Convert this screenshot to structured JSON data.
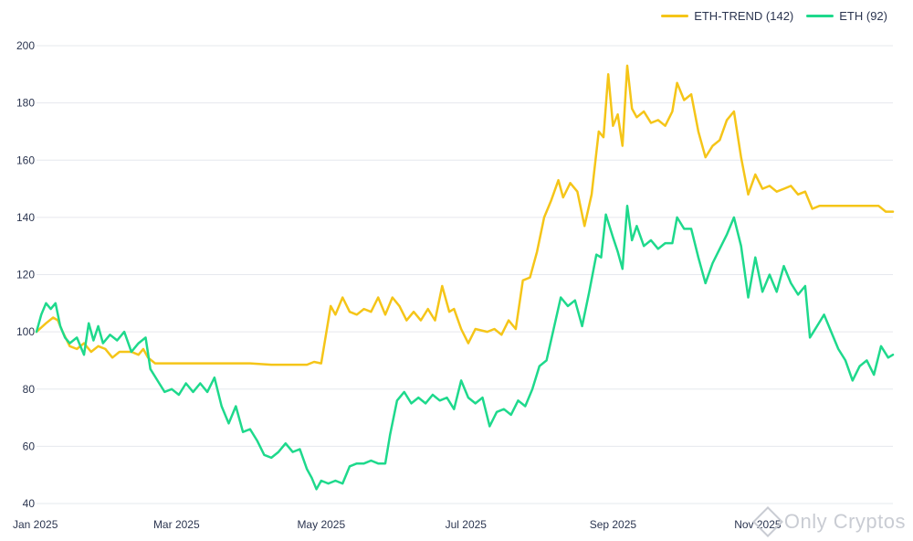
{
  "legend": {
    "trend_label": "ETH-TREND (142)",
    "eth_label": "ETH (92)"
  },
  "watermark": {
    "text": "Only Cryptos"
  },
  "colors": {
    "trend": "#f5c518",
    "eth": "#1ed98c",
    "grid": "#e6e8ee",
    "text": "#2b3550"
  },
  "chart_data": {
    "type": "line",
    "x_ticks": [
      "Jan 2025",
      "Mar 2025",
      "May 2025",
      "Jul 2025",
      "Sep 2025",
      "Nov 2025"
    ],
    "x_tick_dates": [
      "2025-01-01",
      "2025-03-01",
      "2025-05-01",
      "2025-07-01",
      "2025-09-01",
      "2025-11-01"
    ],
    "y_ticks": [
      40,
      60,
      80,
      100,
      120,
      140,
      160,
      180,
      200
    ],
    "ylim": [
      40,
      200
    ],
    "xlim": [
      "2025-01-01",
      "2025-12-28"
    ],
    "grid": true,
    "legend_position": "top-right",
    "series": [
      {
        "name": "ETH-TREND (142)",
        "color_key": "trend",
        "points": [
          [
            "2025-01-01",
            100
          ],
          [
            "2025-01-05",
            103
          ],
          [
            "2025-01-08",
            105
          ],
          [
            "2025-01-10",
            104
          ],
          [
            "2025-01-12",
            100
          ],
          [
            "2025-01-15",
            95
          ],
          [
            "2025-01-18",
            94
          ],
          [
            "2025-01-21",
            96
          ],
          [
            "2025-01-24",
            93
          ],
          [
            "2025-01-27",
            95
          ],
          [
            "2025-01-30",
            94
          ],
          [
            "2025-02-02",
            91
          ],
          [
            "2025-02-05",
            93
          ],
          [
            "2025-02-10",
            93
          ],
          [
            "2025-02-13",
            92
          ],
          [
            "2025-02-15",
            94
          ],
          [
            "2025-02-17",
            91
          ],
          [
            "2025-02-20",
            89
          ],
          [
            "2025-03-01",
            89
          ],
          [
            "2025-04-01",
            89
          ],
          [
            "2025-04-10",
            88.5
          ],
          [
            "2025-04-25",
            88.5
          ],
          [
            "2025-04-28",
            89.5
          ],
          [
            "2025-05-01",
            89
          ],
          [
            "2025-05-03",
            99
          ],
          [
            "2025-05-05",
            109
          ],
          [
            "2025-05-07",
            106
          ],
          [
            "2025-05-10",
            112
          ],
          [
            "2025-05-13",
            107
          ],
          [
            "2025-05-16",
            106
          ],
          [
            "2025-05-19",
            108
          ],
          [
            "2025-05-22",
            107
          ],
          [
            "2025-05-25",
            112
          ],
          [
            "2025-05-28",
            106
          ],
          [
            "2025-05-31",
            112
          ],
          [
            "2025-06-03",
            109
          ],
          [
            "2025-06-06",
            104
          ],
          [
            "2025-06-09",
            107
          ],
          [
            "2025-06-12",
            104
          ],
          [
            "2025-06-15",
            108
          ],
          [
            "2025-06-18",
            104
          ],
          [
            "2025-06-21",
            116
          ],
          [
            "2025-06-24",
            107
          ],
          [
            "2025-06-26",
            108
          ],
          [
            "2025-06-29",
            101
          ],
          [
            "2025-07-02",
            96
          ],
          [
            "2025-07-05",
            101
          ],
          [
            "2025-07-10",
            100
          ],
          [
            "2025-07-13",
            101
          ],
          [
            "2025-07-16",
            99
          ],
          [
            "2025-07-19",
            104
          ],
          [
            "2025-07-22",
            101
          ],
          [
            "2025-07-25",
            118
          ],
          [
            "2025-07-28",
            119
          ],
          [
            "2025-07-31",
            128
          ],
          [
            "2025-08-03",
            140
          ],
          [
            "2025-08-06",
            146
          ],
          [
            "2025-08-09",
            153
          ],
          [
            "2025-08-11",
            147
          ],
          [
            "2025-08-14",
            152
          ],
          [
            "2025-08-17",
            149
          ],
          [
            "2025-08-20",
            137
          ],
          [
            "2025-08-23",
            148
          ],
          [
            "2025-08-26",
            170
          ],
          [
            "2025-08-28",
            168
          ],
          [
            "2025-08-30",
            190
          ],
          [
            "2025-09-01",
            172
          ],
          [
            "2025-09-03",
            176
          ],
          [
            "2025-09-05",
            165
          ],
          [
            "2025-09-07",
            193
          ],
          [
            "2025-09-09",
            178
          ],
          [
            "2025-09-11",
            175
          ],
          [
            "2025-09-14",
            177
          ],
          [
            "2025-09-17",
            173
          ],
          [
            "2025-09-20",
            174
          ],
          [
            "2025-09-23",
            172
          ],
          [
            "2025-09-26",
            177
          ],
          [
            "2025-09-28",
            187
          ],
          [
            "2025-10-01",
            181
          ],
          [
            "2025-10-04",
            183
          ],
          [
            "2025-10-07",
            170
          ],
          [
            "2025-10-10",
            161
          ],
          [
            "2025-10-13",
            165
          ],
          [
            "2025-10-16",
            167
          ],
          [
            "2025-10-19",
            174
          ],
          [
            "2025-10-22",
            177
          ],
          [
            "2025-10-25",
            161
          ],
          [
            "2025-10-28",
            148
          ],
          [
            "2025-10-31",
            155
          ],
          [
            "2025-11-03",
            150
          ],
          [
            "2025-11-06",
            151
          ],
          [
            "2025-11-09",
            149
          ],
          [
            "2025-11-12",
            150
          ],
          [
            "2025-11-15",
            151
          ],
          [
            "2025-11-18",
            148
          ],
          [
            "2025-11-21",
            149
          ],
          [
            "2025-11-24",
            143
          ],
          [
            "2025-11-27",
            144
          ],
          [
            "2025-12-05",
            144
          ],
          [
            "2025-12-15",
            144
          ],
          [
            "2025-12-22",
            144
          ],
          [
            "2025-12-25",
            142
          ],
          [
            "2025-12-28",
            142
          ]
        ]
      },
      {
        "name": "ETH (92)",
        "color_key": "eth",
        "points": [
          [
            "2025-01-01",
            100
          ],
          [
            "2025-01-03",
            106
          ],
          [
            "2025-01-05",
            110
          ],
          [
            "2025-01-07",
            108
          ],
          [
            "2025-01-09",
            110
          ],
          [
            "2025-01-11",
            102
          ],
          [
            "2025-01-13",
            98
          ],
          [
            "2025-01-15",
            96
          ],
          [
            "2025-01-18",
            98
          ],
          [
            "2025-01-21",
            92
          ],
          [
            "2025-01-23",
            103
          ],
          [
            "2025-01-25",
            97
          ],
          [
            "2025-01-27",
            102
          ],
          [
            "2025-01-29",
            96
          ],
          [
            "2025-02-01",
            99
          ],
          [
            "2025-02-04",
            97
          ],
          [
            "2025-02-07",
            100
          ],
          [
            "2025-02-10",
            93
          ],
          [
            "2025-02-13",
            96
          ],
          [
            "2025-02-16",
            98
          ],
          [
            "2025-02-18",
            87
          ],
          [
            "2025-02-21",
            83
          ],
          [
            "2025-02-24",
            79
          ],
          [
            "2025-02-27",
            80
          ],
          [
            "2025-03-02",
            78
          ],
          [
            "2025-03-05",
            82
          ],
          [
            "2025-03-08",
            79
          ],
          [
            "2025-03-11",
            82
          ],
          [
            "2025-03-14",
            79
          ],
          [
            "2025-03-17",
            84
          ],
          [
            "2025-03-20",
            74
          ],
          [
            "2025-03-23",
            68
          ],
          [
            "2025-03-26",
            74
          ],
          [
            "2025-03-29",
            65
          ],
          [
            "2025-04-01",
            66
          ],
          [
            "2025-04-04",
            62
          ],
          [
            "2025-04-07",
            57
          ],
          [
            "2025-04-10",
            56
          ],
          [
            "2025-04-13",
            58
          ],
          [
            "2025-04-16",
            61
          ],
          [
            "2025-04-19",
            58
          ],
          [
            "2025-04-22",
            59
          ],
          [
            "2025-04-25",
            52
          ],
          [
            "2025-04-27",
            49
          ],
          [
            "2025-04-29",
            45
          ],
          [
            "2025-05-01",
            48
          ],
          [
            "2025-05-04",
            47
          ],
          [
            "2025-05-07",
            48
          ],
          [
            "2025-05-10",
            47
          ],
          [
            "2025-05-13",
            53
          ],
          [
            "2025-05-16",
            54
          ],
          [
            "2025-05-19",
            54
          ],
          [
            "2025-05-22",
            55
          ],
          [
            "2025-05-25",
            54
          ],
          [
            "2025-05-28",
            54
          ],
          [
            "2025-05-30",
            64
          ],
          [
            "2025-06-02",
            76
          ],
          [
            "2025-06-05",
            79
          ],
          [
            "2025-06-08",
            75
          ],
          [
            "2025-06-11",
            77
          ],
          [
            "2025-06-14",
            75
          ],
          [
            "2025-06-17",
            78
          ],
          [
            "2025-06-20",
            76
          ],
          [
            "2025-06-23",
            77
          ],
          [
            "2025-06-26",
            73
          ],
          [
            "2025-06-29",
            83
          ],
          [
            "2025-07-02",
            77
          ],
          [
            "2025-07-05",
            75
          ],
          [
            "2025-07-08",
            77
          ],
          [
            "2025-07-11",
            67
          ],
          [
            "2025-07-14",
            72
          ],
          [
            "2025-07-17",
            73
          ],
          [
            "2025-07-20",
            71
          ],
          [
            "2025-07-23",
            76
          ],
          [
            "2025-07-26",
            74
          ],
          [
            "2025-07-29",
            80
          ],
          [
            "2025-08-01",
            88
          ],
          [
            "2025-08-04",
            90
          ],
          [
            "2025-08-07",
            101
          ],
          [
            "2025-08-10",
            112
          ],
          [
            "2025-08-13",
            109
          ],
          [
            "2025-08-16",
            111
          ],
          [
            "2025-08-19",
            102
          ],
          [
            "2025-08-22",
            114
          ],
          [
            "2025-08-25",
            127
          ],
          [
            "2025-08-27",
            126
          ],
          [
            "2025-08-29",
            141
          ],
          [
            "2025-09-01",
            133
          ],
          [
            "2025-09-03",
            128
          ],
          [
            "2025-09-05",
            122
          ],
          [
            "2025-09-07",
            144
          ],
          [
            "2025-09-09",
            132
          ],
          [
            "2025-09-11",
            137
          ],
          [
            "2025-09-14",
            130
          ],
          [
            "2025-09-17",
            132
          ],
          [
            "2025-09-20",
            129
          ],
          [
            "2025-09-23",
            131
          ],
          [
            "2025-09-26",
            131
          ],
          [
            "2025-09-28",
            140
          ],
          [
            "2025-10-01",
            136
          ],
          [
            "2025-10-04",
            136
          ],
          [
            "2025-10-07",
            126
          ],
          [
            "2025-10-10",
            117
          ],
          [
            "2025-10-13",
            124
          ],
          [
            "2025-10-16",
            129
          ],
          [
            "2025-10-19",
            134
          ],
          [
            "2025-10-22",
            140
          ],
          [
            "2025-10-25",
            130
          ],
          [
            "2025-10-28",
            112
          ],
          [
            "2025-10-31",
            126
          ],
          [
            "2025-11-03",
            114
          ],
          [
            "2025-11-06",
            120
          ],
          [
            "2025-11-09",
            114
          ],
          [
            "2025-11-12",
            123
          ],
          [
            "2025-11-15",
            117
          ],
          [
            "2025-11-18",
            113
          ],
          [
            "2025-11-21",
            116
          ],
          [
            "2025-11-23",
            98
          ],
          [
            "2025-11-26",
            102
          ],
          [
            "2025-11-29",
            106
          ],
          [
            "2025-12-02",
            100
          ],
          [
            "2025-12-05",
            94
          ],
          [
            "2025-12-08",
            90
          ],
          [
            "2025-12-11",
            83
          ],
          [
            "2025-12-14",
            88
          ],
          [
            "2025-12-17",
            90
          ],
          [
            "2025-12-20",
            85
          ],
          [
            "2025-12-23",
            95
          ],
          [
            "2025-12-26",
            91
          ],
          [
            "2025-12-28",
            92
          ]
        ]
      }
    ]
  }
}
